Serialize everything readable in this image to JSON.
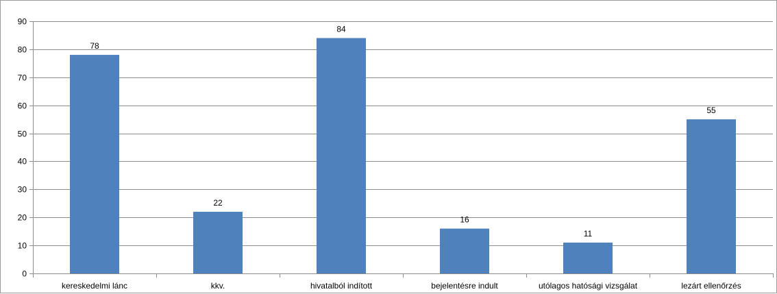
{
  "chart_data": {
    "type": "bar",
    "categories": [
      "kereskedelmi lánc",
      "kkv.",
      "hivatalból indított",
      "bejelentésre indult",
      "utólagos hatósági vizsgálat",
      "lezárt ellenőrzés"
    ],
    "values": [
      78,
      22,
      84,
      16,
      11,
      55
    ],
    "data_labels": [
      "78",
      "22",
      "84",
      "16",
      "11",
      "55"
    ],
    "yticks": [
      "0",
      "10",
      "20",
      "30",
      "40",
      "50",
      "60",
      "70",
      "80",
      "90"
    ],
    "title": "",
    "xlabel": "",
    "ylabel": "",
    "ylim": [
      0,
      90
    ],
    "grid": true,
    "legend": "none",
    "bar_color": "#4f81bd",
    "grid_color": "#8c8c8c",
    "axis_color": "#8c8c8c"
  }
}
